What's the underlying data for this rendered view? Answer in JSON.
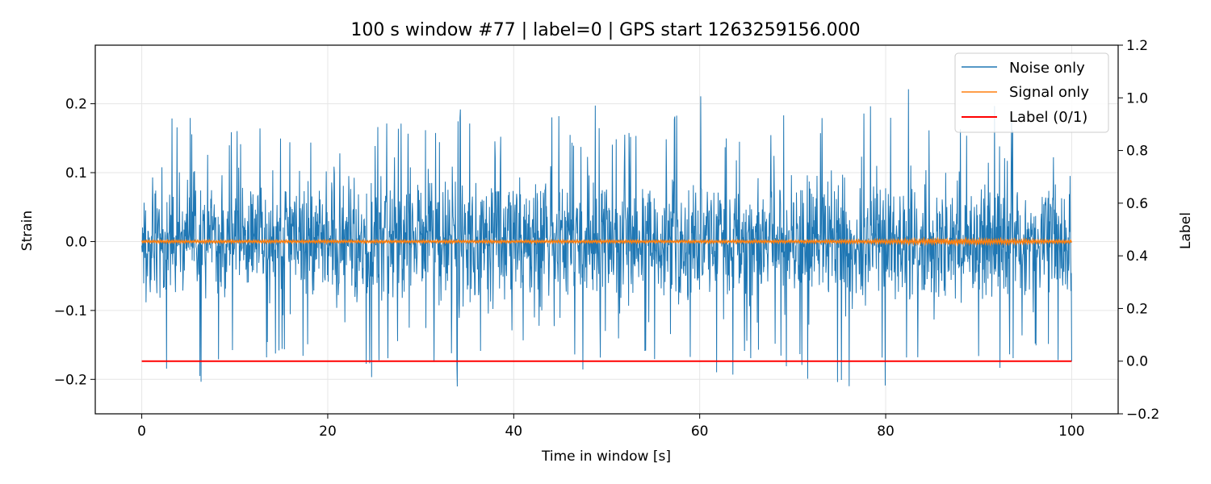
{
  "chart_data": {
    "type": "line",
    "title": "100 s window #77 | label=0 | GPS start 1263259156.000",
    "xlabel": "Time in window [s]",
    "ylabel": "Strain",
    "y2label": "Label",
    "xlim": [
      -5,
      105
    ],
    "ylim": [
      -0.25,
      0.285
    ],
    "y2lim": [
      -0.2,
      1.2
    ],
    "x_ticks": [
      0,
      20,
      40,
      60,
      80,
      100
    ],
    "x_tick_labels": [
      "0",
      "20",
      "40",
      "60",
      "80",
      "100"
    ],
    "y_ticks": [
      -0.2,
      -0.1,
      0.0,
      0.1,
      0.2
    ],
    "y_tick_labels": [
      "−0.2",
      "−0.1",
      "0.0",
      "0.1",
      "0.2"
    ],
    "y2_ticks": [
      -0.2,
      0.0,
      0.2,
      0.4,
      0.6,
      0.8,
      1.0,
      1.2
    ],
    "y2_tick_labels": [
      "−0.2",
      "0.0",
      "0.2",
      "0.4",
      "0.6",
      "0.8",
      "1.0",
      "1.2"
    ],
    "grid": true,
    "legend_position": "top-right",
    "series": [
      {
        "name": "Noise only",
        "color": "#1f77b4",
        "axis": "left",
        "x_range": [
          0,
          100
        ],
        "typical_amplitude": 0.09,
        "envelope_max": [
          0.117,
          0.188,
          0.19,
          0.16,
          0.18,
          0.19,
          0.17,
          0.17,
          0.17,
          0.19,
          0.2,
          0.18,
          0.17,
          0.18,
          0.2,
          0.18,
          0.17,
          0.17,
          0.19,
          0.17,
          0.2,
          0.16,
          0.17,
          0.18,
          0.2,
          0.23,
          0.17,
          0.18,
          0.19,
          0.2,
          0.19,
          0.18,
          0.2,
          0.21,
          0.26,
          0.19,
          0.2,
          0.19,
          0.22,
          0.2,
          0.17,
          0.19
        ],
        "envelope_min": [
          -0.178,
          -0.2,
          -0.21,
          -0.19,
          -0.18,
          -0.2,
          -0.18,
          -0.17,
          -0.17,
          -0.18,
          -0.2,
          -0.17,
          -0.17,
          -0.18,
          -0.22,
          -0.17,
          -0.18,
          -0.17,
          -0.19,
          -0.2,
          -0.2,
          -0.16,
          -0.17,
          -0.18,
          -0.2,
          -0.2,
          -0.22,
          -0.17,
          -0.18,
          -0.19,
          -0.2,
          -0.23,
          -0.19,
          -0.21,
          -0.18,
          -0.19,
          -0.2,
          -0.17,
          -0.2,
          -0.17,
          -0.18,
          -0.2
        ]
      },
      {
        "name": "Signal only",
        "color": "#ff7f0e",
        "axis": "left",
        "x_range": [
          0,
          100
        ],
        "typical_amplitude": 0.002
      },
      {
        "name": "Label (0/1)",
        "color": "#ff0000",
        "axis": "right",
        "x": [
          0,
          100
        ],
        "y": [
          0,
          0
        ]
      }
    ]
  }
}
